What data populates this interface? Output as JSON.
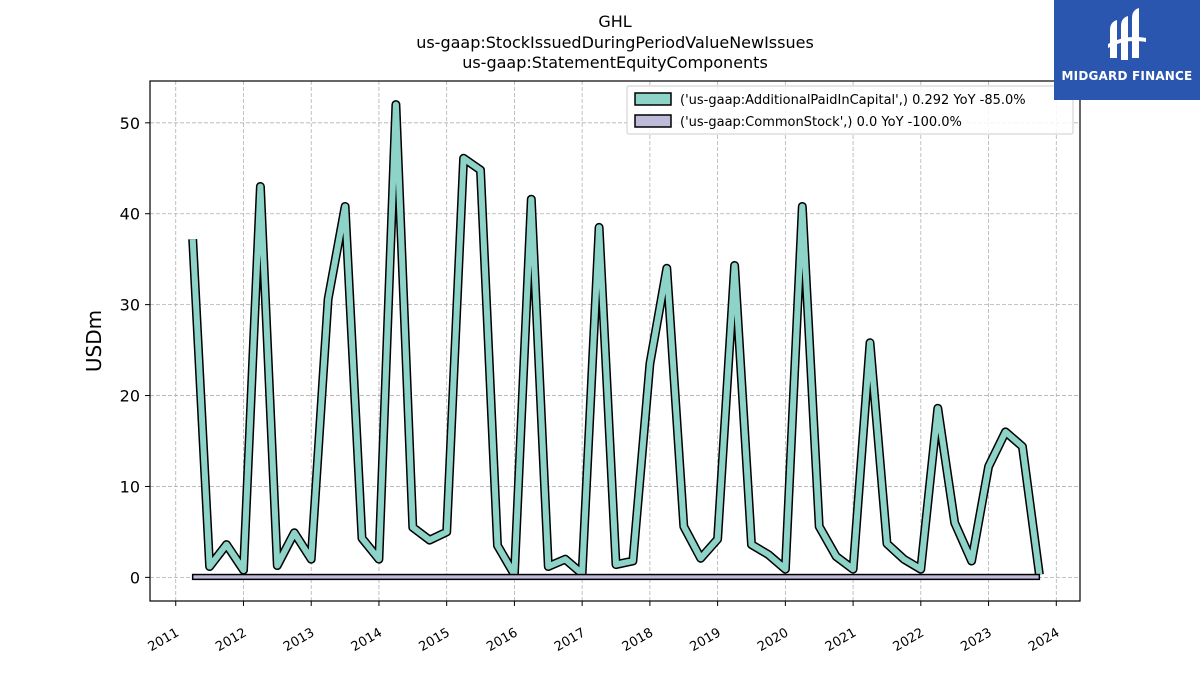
{
  "chart_data": {
    "type": "line",
    "title_lines": [
      "GHL",
      "us-gaap:StockIssuedDuringPeriodValueNewIssues",
      "us-gaap:StatementEquityComponents"
    ],
    "ylabel": "USDm",
    "xlabel": "",
    "xlim": [
      2010.62,
      2024.35
    ],
    "ylim": [
      -2.6,
      54.6
    ],
    "yticks": [
      0,
      10,
      20,
      30,
      40,
      50
    ],
    "xticks": [
      2011,
      2012,
      2013,
      2014,
      2015,
      2016,
      2017,
      2018,
      2019,
      2020,
      2021,
      2022,
      2023,
      2024
    ],
    "grid": true,
    "legend_position": "top-right",
    "series": [
      {
        "name": "('us-gaap:AdditionalPaidInCapital',) 0.292 YoY -85.0%",
        "color": "#8dd3c7",
        "x": [
          2011.25,
          2011.5,
          2011.75,
          2012.0,
          2012.25,
          2012.5,
          2012.75,
          2013.0,
          2013.25,
          2013.5,
          2013.75,
          2014.0,
          2014.25,
          2014.5,
          2014.75,
          2015.0,
          2015.25,
          2015.5,
          2015.75,
          2016.0,
          2016.25,
          2016.5,
          2016.75,
          2017.0,
          2017.25,
          2017.5,
          2017.75,
          2018.0,
          2018.25,
          2018.5,
          2018.75,
          2019.0,
          2019.25,
          2019.5,
          2019.75,
          2020.0,
          2020.25,
          2020.5,
          2020.75,
          2021.0,
          2021.25,
          2021.5,
          2021.75,
          2022.0,
          2022.25,
          2022.5,
          2022.75,
          2023.0,
          2023.25,
          2023.5,
          2023.75
        ],
        "values": [
          37.2,
          1.2,
          3.6,
          0.8,
          43.0,
          1.3,
          4.9,
          2.0,
          30.6,
          40.8,
          4.3,
          2.0,
          52.0,
          5.5,
          4.1,
          5.0,
          46.1,
          44.8,
          3.5,
          0.3,
          41.6,
          1.2,
          2.0,
          0.4,
          38.5,
          1.4,
          1.8,
          23.5,
          34.0,
          5.6,
          2.1,
          4.2,
          34.3,
          3.6,
          2.5,
          0.9,
          40.8,
          5.6,
          2.3,
          0.9,
          25.8,
          3.7,
          2.0,
          0.9,
          18.6,
          6.0,
          1.8,
          12.2,
          16.0,
          14.4,
          0.3
        ]
      },
      {
        "name": "('us-gaap:CommonStock',) 0.0 YoY -100.0%",
        "color": "#bebada",
        "x": [
          2011.25,
          2023.75
        ],
        "values": [
          0.2,
          0.0
        ]
      }
    ]
  },
  "logo": {
    "text": "MIDGARD FINANCE",
    "color": "#2a56b0"
  }
}
